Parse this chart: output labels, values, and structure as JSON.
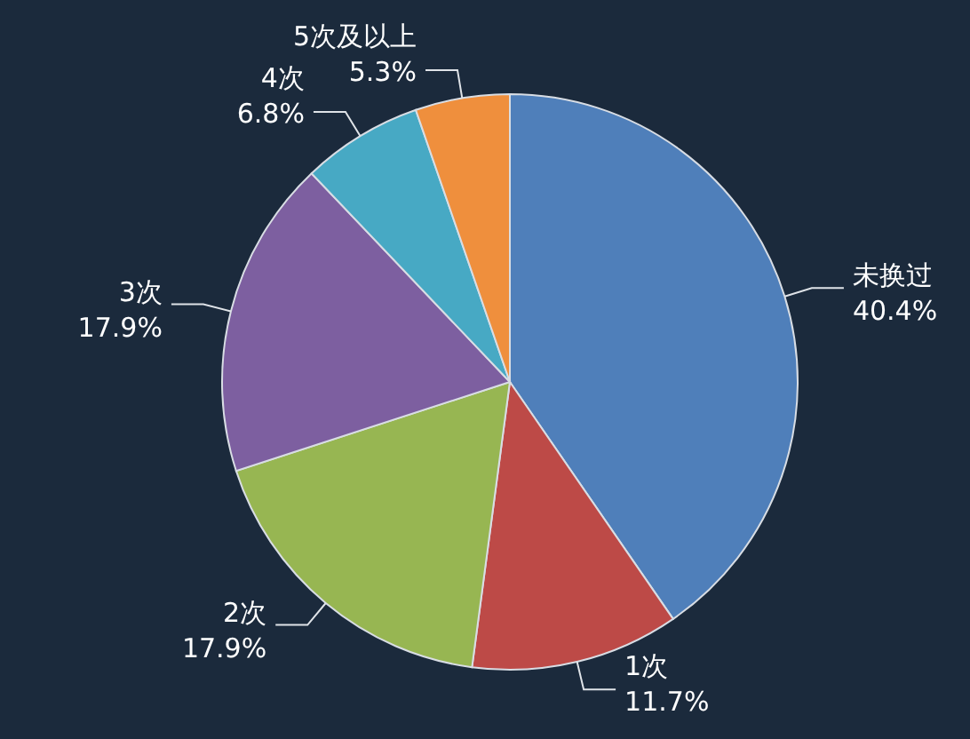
{
  "chart_data": {
    "type": "pie",
    "categories": [
      "未换过",
      "1次",
      "2次",
      "3次",
      "4次",
      "5次及以上"
    ],
    "values": [
      40.4,
      11.7,
      17.9,
      17.9,
      6.8,
      5.3
    ],
    "colors": [
      "#4f7fba",
      "#bd4a47",
      "#97b652",
      "#7d5fa0",
      "#47a9c4",
      "#ef8f3d"
    ],
    "value_labels": [
      "40.4%",
      "11.7%",
      "17.9%",
      "17.9%",
      "6.8%",
      "5.3%"
    ]
  }
}
